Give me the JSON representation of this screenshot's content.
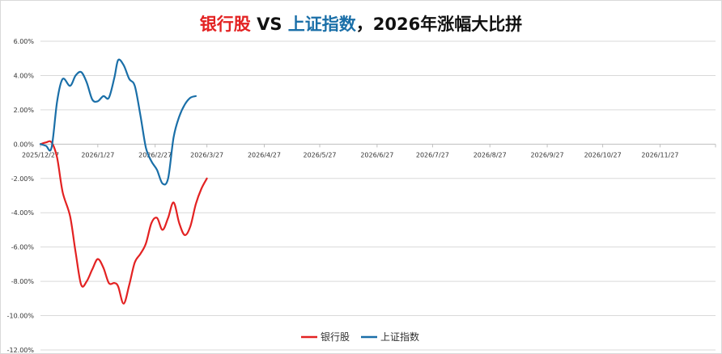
{
  "chart_data": {
    "type": "line",
    "title": {
      "part1": "银行股",
      "part2": " VS ",
      "part3": "上证指数",
      "part4": "，2026年涨幅大比拼"
    },
    "ylim": [
      -0.12,
      0.06
    ],
    "y_ticks": [
      "6.00%",
      "4.00%",
      "2.00%",
      "0.00%",
      "-2.00%",
      "-4.00%",
      "-6.00%",
      "-8.00%",
      "-10.00%",
      "-12.00%"
    ],
    "y_tick_values": [
      0.06,
      0.04,
      0.02,
      0.0,
      -0.02,
      -0.04,
      -0.06,
      -0.08,
      -0.1,
      -0.12
    ],
    "x_ticks": [
      "2025/12/27",
      "2026/1/27",
      "2026/2/27",
      "2026/3/27",
      "2026/4/27",
      "2026/5/27",
      "2026/6/27",
      "2026/7/27",
      "2026/8/27",
      "2026/9/27",
      "2026/10/27",
      "2026/11/27"
    ],
    "x_range": [
      "2025/12/27",
      "2026/12/27"
    ],
    "grid": true,
    "legend_position": "bottom",
    "series": [
      {
        "name": "银行股",
        "color": "#e32222",
        "points": [
          [
            "2025/12/27",
            0.0
          ],
          [
            "2025/12/30",
            0.001
          ],
          [
            "2026/1/2",
            0.001
          ],
          [
            "2026/1/5",
            -0.008
          ],
          [
            "2026/1/8",
            -0.028
          ],
          [
            "2026/1/12",
            -0.042
          ],
          [
            "2026/1/15",
            -0.063
          ],
          [
            "2026/1/18",
            -0.082
          ],
          [
            "2026/1/21",
            -0.08
          ],
          [
            "2026/1/24",
            -0.073
          ],
          [
            "2026/1/27",
            -0.067
          ],
          [
            "2026/1/30",
            -0.072
          ],
          [
            "2026/2/2",
            -0.081
          ],
          [
            "2026/2/5",
            -0.081
          ],
          [
            "2026/2/7",
            -0.083
          ],
          [
            "2026/2/10",
            -0.093
          ],
          [
            "2026/2/13",
            -0.082
          ],
          [
            "2026/2/16",
            -0.069
          ],
          [
            "2026/2/19",
            -0.064
          ],
          [
            "2026/2/22",
            -0.058
          ],
          [
            "2026/2/25",
            -0.046
          ],
          [
            "2026/2/28",
            -0.043
          ],
          [
            "2026/3/3",
            -0.05
          ],
          [
            "2026/3/6",
            -0.043
          ],
          [
            "2026/3/9",
            -0.034
          ],
          [
            "2026/3/12",
            -0.046
          ],
          [
            "2026/3/15",
            -0.053
          ],
          [
            "2026/3/18",
            -0.048
          ],
          [
            "2026/3/21",
            -0.035
          ],
          [
            "2026/3/24",
            -0.026
          ],
          [
            "2026/3/27",
            -0.02
          ]
        ]
      },
      {
        "name": "上证指数",
        "color": "#1a6fa8",
        "points": [
          [
            "2025/12/27",
            0.0
          ],
          [
            "2025/12/30",
            -0.001
          ],
          [
            "2026/1/2",
            -0.002
          ],
          [
            "2026/1/5",
            0.025
          ],
          [
            "2026/1/8",
            0.038
          ],
          [
            "2026/1/12",
            0.034
          ],
          [
            "2026/1/15",
            0.04
          ],
          [
            "2026/1/18",
            0.042
          ],
          [
            "2026/1/21",
            0.036
          ],
          [
            "2026/1/24",
            0.026
          ],
          [
            "2026/1/27",
            0.025
          ],
          [
            "2026/1/30",
            0.028
          ],
          [
            "2026/2/2",
            0.027
          ],
          [
            "2026/2/5",
            0.039
          ],
          [
            "2026/2/7",
            0.049
          ],
          [
            "2026/2/10",
            0.046
          ],
          [
            "2026/2/13",
            0.038
          ],
          [
            "2026/2/16",
            0.034
          ],
          [
            "2026/2/19",
            0.017
          ],
          [
            "2026/2/22",
            -0.002
          ],
          [
            "2026/2/25",
            -0.01
          ],
          [
            "2026/2/28",
            -0.015
          ],
          [
            "2026/3/3",
            -0.023
          ],
          [
            "2026/3/6",
            -0.02
          ],
          [
            "2026/3/9",
            0.004
          ],
          [
            "2026/3/12",
            0.016
          ],
          [
            "2026/3/15",
            0.023
          ],
          [
            "2026/3/18",
            0.027
          ],
          [
            "2026/3/21",
            0.028
          ]
        ]
      }
    ]
  }
}
